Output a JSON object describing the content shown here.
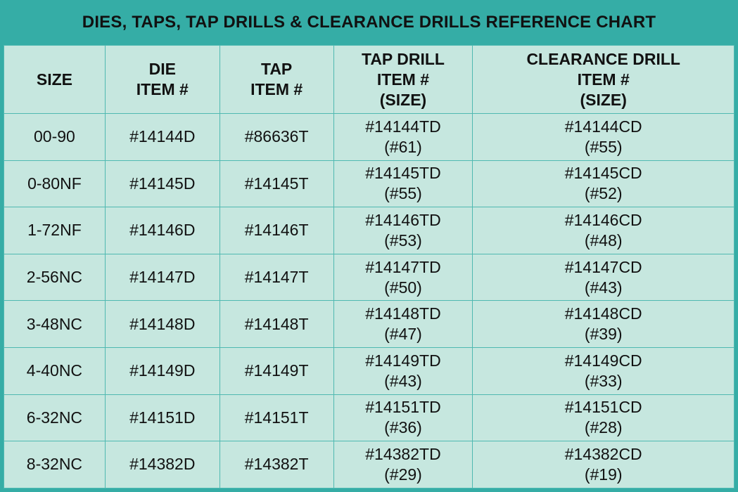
{
  "title": "DIES, TAPS, TAP DRILLS & CLEARANCE DRILLS REFERENCE CHART",
  "colors": {
    "header_bar": "#35ada6",
    "cell_background": "#c6e7df",
    "grid_lines": "#4fb9b1"
  },
  "headers": [
    [
      "SIZE"
    ],
    [
      "DIE",
      "ITEM #"
    ],
    [
      "TAP",
      "ITEM #"
    ],
    [
      "TAP DRILL",
      "ITEM #",
      "(SIZE)"
    ],
    [
      "CLEARANCE DRILL",
      "ITEM #",
      "(SIZE)"
    ]
  ],
  "rows": [
    {
      "size": "00-90",
      "die": "#14144D",
      "tap": "#86636T",
      "tap_drill": "#14144TD",
      "tap_drill_size": "(#61)",
      "clearance": "#14144CD",
      "clearance_size": "(#55)"
    },
    {
      "size": "0-80NF",
      "die": "#14145D",
      "tap": "#14145T",
      "tap_drill": "#14145TD",
      "tap_drill_size": "(#55)",
      "clearance": "#14145CD",
      "clearance_size": "(#52)"
    },
    {
      "size": "1-72NF",
      "die": "#14146D",
      "tap": "#14146T",
      "tap_drill": "#14146TD",
      "tap_drill_size": "(#53)",
      "clearance": "#14146CD",
      "clearance_size": "(#48)"
    },
    {
      "size": "2-56NC",
      "die": "#14147D",
      "tap": "#14147T",
      "tap_drill": "#14147TD",
      "tap_drill_size": "(#50)",
      "clearance": "#14147CD",
      "clearance_size": "(#43)"
    },
    {
      "size": "3-48NC",
      "die": "#14148D",
      "tap": "#14148T",
      "tap_drill": "#14148TD",
      "tap_drill_size": "(#47)",
      "clearance": "#14148CD",
      "clearance_size": "(#39)"
    },
    {
      "size": "4-40NC",
      "die": "#14149D",
      "tap": "#14149T",
      "tap_drill": "#14149TD",
      "tap_drill_size": "(#43)",
      "clearance": "#14149CD",
      "clearance_size": "(#33)"
    },
    {
      "size": "6-32NC",
      "die": "#14151D",
      "tap": "#14151T",
      "tap_drill": "#14151TD",
      "tap_drill_size": "(#36)",
      "clearance": "#14151CD",
      "clearance_size": "(#28)"
    },
    {
      "size": "8-32NC",
      "die": "#14382D",
      "tap": "#14382T",
      "tap_drill": "#14382TD",
      "tap_drill_size": "(#29)",
      "clearance": "#14382CD",
      "clearance_size": "(#19)"
    }
  ]
}
